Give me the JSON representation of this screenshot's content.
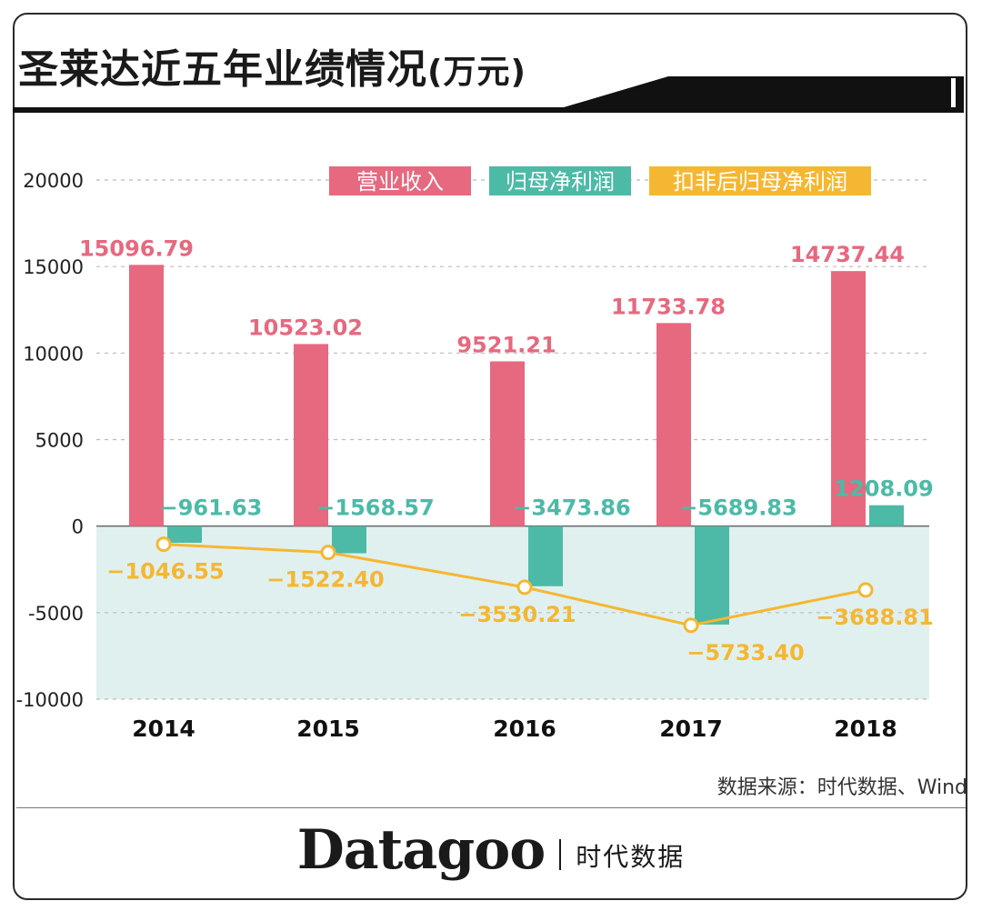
{
  "header": {
    "title": "圣莱达近五年业绩情况",
    "unit": "(万元)"
  },
  "colors": {
    "revenue": "#e6697f",
    "net_profit": "#4cbaa6",
    "adj_net_profit": "#f5b731",
    "negative_band": "#e0f0ef"
  },
  "chart_data": {
    "type": "bar",
    "categories": [
      "2014",
      "2015",
      "2016",
      "2017",
      "2018"
    ],
    "ylim": [
      -10000,
      20000
    ],
    "yticks": [
      20000,
      15000,
      10000,
      5000,
      0,
      -5000,
      -10000
    ],
    "ytick_labels": [
      "20000",
      "15000",
      "10000",
      "5000",
      "0",
      "-5000",
      "-10000"
    ],
    "legend": [
      "营业收入",
      "归母净利润",
      "扣非后归母净利润"
    ],
    "series": [
      {
        "name": "营业收入",
        "kind": "bar",
        "values": [
          15096.79,
          10523.02,
          9521.21,
          11733.78,
          14737.44
        ],
        "labels": [
          "15096.79",
          "10523.02",
          "9521.21",
          "11733.78",
          "14737.44"
        ]
      },
      {
        "name": "归母净利润",
        "kind": "bar",
        "values": [
          -961.63,
          -1568.57,
          -3473.86,
          -5689.83,
          1208.09
        ],
        "labels": [
          "−961.63",
          "−1568.57",
          "−3473.86",
          "−5689.83",
          "1208.09"
        ]
      },
      {
        "name": "扣非后归母净利润",
        "kind": "line",
        "values": [
          -1046.55,
          -1522.4,
          -3530.21,
          -5733.4,
          -3688.81
        ],
        "labels": [
          "−1046.55",
          "−1522.40",
          "−3530.21",
          "−5733.40",
          "−3688.81"
        ]
      }
    ]
  },
  "source": "数据来源：时代数据、Wind",
  "brand": {
    "name": "Datagoo",
    "cn": "时代数据"
  }
}
